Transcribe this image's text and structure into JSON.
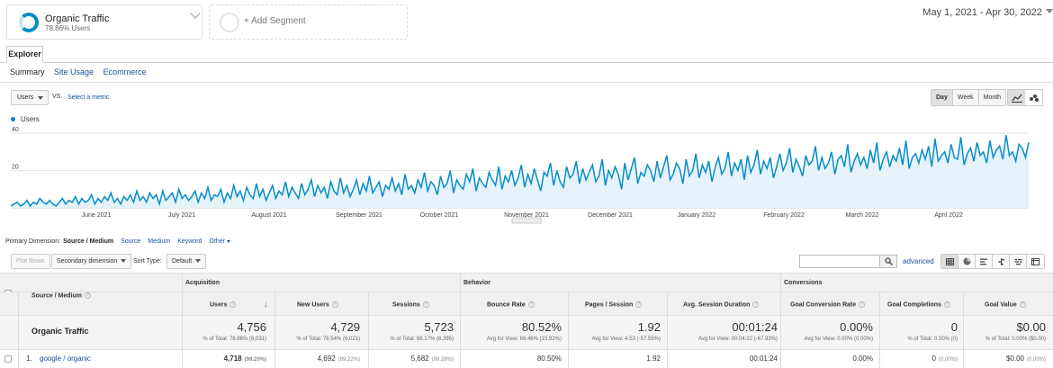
{
  "segment": {
    "title": "Organic Traffic",
    "subtitle": "78.86% Users"
  },
  "add_segment_label": "+ Add Segment",
  "date_range": "May 1, 2021 - Apr 30, 2022",
  "tabs": {
    "explorer": "Explorer"
  },
  "subnav": {
    "summary": "Summary",
    "site_usage": "Site Usage",
    "ecommerce": "Ecommerce"
  },
  "metric": {
    "selected": "Users",
    "vs": "VS.",
    "select_metric": "Select a metric"
  },
  "period_buttons": [
    "Day",
    "Week",
    "Month"
  ],
  "legend_label": "Users",
  "chart_data": {
    "type": "area",
    "series_name": "Users",
    "y_ticks": [
      "40",
      "20"
    ],
    "ylim": [
      0,
      40
    ],
    "x_labels": [
      "June 2021",
      "July 2021",
      "August 2021",
      "September 2021",
      "October 2021",
      "November 2021",
      "December 2021",
      "January 2022",
      "February 2022",
      "March 2022",
      "April 2022"
    ],
    "color": "#058dc7",
    "fill": "#e5f2fa",
    "values": [
      1,
      2,
      3,
      1,
      2,
      4,
      1,
      3,
      2,
      5,
      3,
      2,
      4,
      2,
      1,
      3,
      5,
      2,
      4,
      3,
      6,
      2,
      5,
      3,
      4,
      7,
      2,
      5,
      3,
      6,
      4,
      8,
      3,
      5,
      2,
      6,
      4,
      7,
      3,
      9,
      4,
      6,
      3,
      8,
      5,
      7,
      2,
      9,
      4,
      6,
      8,
      3,
      10,
      5,
      7,
      4,
      6,
      9,
      3,
      8,
      5,
      11,
      4,
      7,
      6,
      10,
      3,
      8,
      5,
      12,
      6,
      9,
      4,
      11,
      7,
      5,
      13,
      6,
      10,
      4,
      8,
      12,
      5,
      9,
      7,
      14,
      6,
      11,
      8,
      5,
      13,
      7,
      10,
      15,
      6,
      12,
      8,
      11,
      5,
      14,
      9,
      7,
      16,
      8,
      12,
      6,
      10,
      15,
      7,
      13,
      9,
      17,
      8,
      11,
      14,
      6,
      12,
      10,
      16,
      9,
      13,
      7,
      18,
      10,
      12,
      8,
      15,
      11,
      19,
      9,
      14,
      12,
      7,
      17,
      11,
      13,
      20,
      8,
      15,
      12,
      10,
      18,
      14,
      21,
      9,
      16,
      13,
      11,
      19,
      15,
      12,
      22,
      10,
      17,
      14,
      20,
      12,
      16,
      23,
      11,
      18,
      13,
      21,
      15,
      9,
      19,
      17,
      24,
      12,
      20,
      14,
      11,
      22,
      16,
      18,
      25,
      13,
      21,
      15,
      19,
      23,
      14,
      17,
      26,
      12,
      20,
      16,
      22,
      18,
      10,
      24,
      15,
      21,
      27,
      13,
      19,
      17,
      23,
      20,
      14,
      25,
      16,
      22,
      28,
      15,
      18,
      24,
      21,
      13,
      26,
      17,
      20,
      29,
      16,
      23,
      19,
      25,
      14,
      22,
      27,
      18,
      21,
      30,
      17,
      24,
      20,
      26,
      15,
      28,
      19,
      23,
      31,
      18,
      25,
      21,
      27,
      16,
      22,
      29,
      20,
      24,
      32,
      19,
      26,
      22,
      17,
      28,
      23,
      25,
      33,
      20,
      27,
      21,
      24,
      30,
      18,
      26,
      28,
      22,
      34,
      19,
      25,
      29,
      23,
      27,
      21,
      31,
      24,
      35,
      20,
      26,
      30,
      22,
      28,
      25,
      32,
      23,
      36,
      21,
      27,
      29,
      24,
      31,
      26,
      33,
      22,
      37,
      25,
      28,
      30,
      24,
      34,
      27,
      26,
      38,
      23,
      29,
      32,
      25,
      35,
      28,
      30,
      24,
      36,
      27,
      31,
      33,
      26,
      39,
      28,
      30,
      25,
      34,
      32,
      27,
      35
    ]
  },
  "primary_dimension": {
    "label": "Primary Dimension:",
    "active": "Source / Medium",
    "links": [
      "Source",
      "Medium",
      "Keyword",
      "Other"
    ]
  },
  "toolbar": {
    "plot_rows": "Plot Rows",
    "secondary_dimension": "Secondary dimension",
    "sort_type_label": "Sort Type:",
    "sort_type": "Default",
    "advanced": "advanced"
  },
  "table": {
    "groups": {
      "acquisition": "Acquisition",
      "behavior": "Behavior",
      "conversions": "Conversions"
    },
    "dimension_header": "Source / Medium",
    "columns": [
      "Users",
      "New Users",
      "Sessions",
      "Bounce Rate",
      "Pages / Session",
      "Avg. Session Duration",
      "Goal Conversion Rate",
      "Goal Completions",
      "Goal Value"
    ],
    "totals": {
      "label": "Organic Traffic",
      "values": [
        "4,756",
        "4,729",
        "5,723",
        "80.52%",
        "1.92",
        "00:01:24",
        "0.00%",
        "0",
        "$0.00"
      ],
      "subs": [
        "% of Total: 78.86% (6,031)",
        "% of Total: 78.54% (6,021)",
        "% of Total: 68.17% (8,395)",
        "Avg for View: 69.46% (15.92%)",
        "Avg for View: 4.53 (-57.55%)",
        "Avg for View: 00:04:22 (-67.93%)",
        "Avg for View: 0.00% (0.00%)",
        "% of Total: 0.00% (0)",
        "% of Total: 0.00% ($0.00)"
      ]
    },
    "rows": [
      {
        "num": "1.",
        "source": "google / organic",
        "values": [
          "4,718",
          "4,692",
          "5,682",
          "80.50%",
          "1.92",
          "00:01:24",
          "0.00%",
          "0",
          "$0.00"
        ],
        "pcts": [
          "(99.20%)",
          "(99.22%)",
          "(99.28%)",
          "",
          "",
          "",
          "",
          "(0.00%)",
          "(0.00%)"
        ]
      }
    ]
  }
}
